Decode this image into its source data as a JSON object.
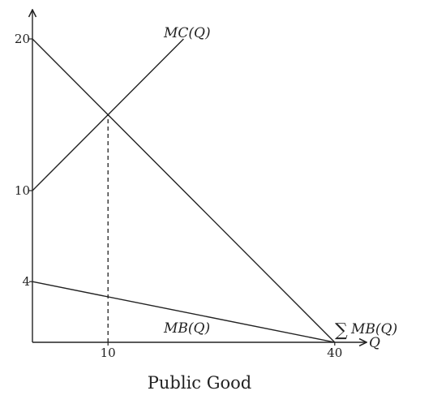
{
  "chart_data": {
    "type": "line",
    "title": "Public Good",
    "xlabel": "Q",
    "ylabel": "",
    "xlim": [
      0,
      40
    ],
    "ylim": [
      0,
      20
    ],
    "x_ticks": [
      "10",
      "40"
    ],
    "y_ticks": [
      "4",
      "10",
      "20"
    ],
    "series": [
      {
        "name": "MC(Q)",
        "x": [
          0,
          20
        ],
        "y": [
          10,
          20
        ]
      },
      {
        "name": "∑MB(Q)",
        "x": [
          0,
          40
        ],
        "y": [
          20,
          0
        ]
      },
      {
        "name": "MB(Q)",
        "x": [
          0,
          40
        ],
        "y": [
          4,
          0
        ]
      }
    ],
    "guides": [
      {
        "style": "dashed",
        "x": [
          10,
          10
        ],
        "y": [
          0,
          15
        ]
      }
    ]
  },
  "labels": {
    "mc": "MC(Q)",
    "mb": "MB(Q)",
    "sum_symbol": "∑",
    "sum_mb": "MB(Q)",
    "q": "Q",
    "caption": "Public Good"
  },
  "colors": {
    "ink": "#222222"
  }
}
